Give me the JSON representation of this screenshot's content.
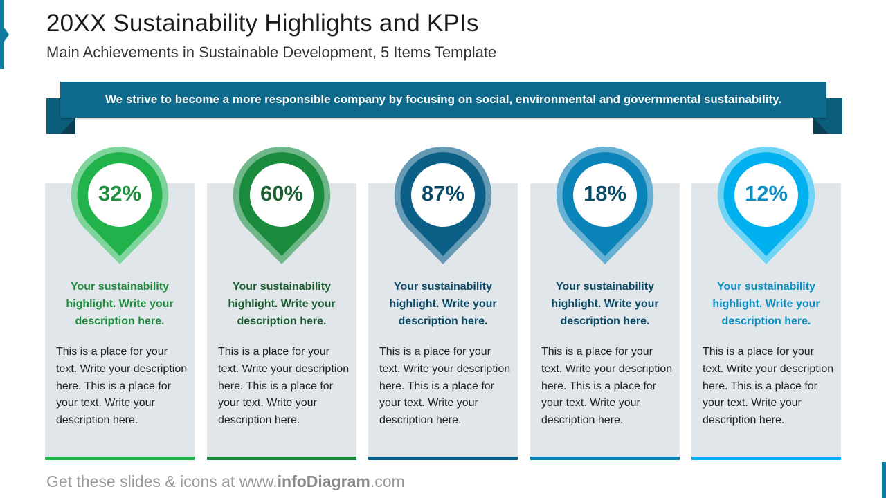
{
  "header": {
    "title": "20XX Sustainability Highlights and KPIs",
    "subtitle": "Main Achievements in Sustainable Development, 5 Items Template"
  },
  "banner": {
    "text": "We strive to become a more responsible company by focusing on social, environmental and governmental sustainability."
  },
  "kpis": [
    {
      "value": "32%",
      "highlight": "Your sustainability highlight. Write your description here.",
      "description": "This is a place for your text. Write your description here. This is a place for your text. Write your description here.",
      "color": "#21b24b",
      "ring_color": "#7fd49b",
      "highlight_color": "#1e8c3c"
    },
    {
      "value": "60%",
      "highlight": "Your sustainability highlight. Write your description here.",
      "description": "This is a place for your text. Write your description here. This is a place for your text. Write your description here.",
      "color": "#1a8a3c",
      "ring_color": "#6fb788",
      "highlight_color": "#1b5e30"
    },
    {
      "value": "87%",
      "highlight": "Your sustainability highlight. Write your description here.",
      "description": "This is a place for your text. Write your description here. This is a place for your text. Write your description here.",
      "color": "#0b5f86",
      "ring_color": "#6699b4",
      "highlight_color": "#0b4a66"
    },
    {
      "value": "18%",
      "highlight": "Your sustainability highlight. Write your description here.",
      "description": "This is a place for your text. Write your description here. This is a place for your text. Write your description here.",
      "color": "#0a84b8",
      "ring_color": "#66b1d3",
      "highlight_color": "#0b4a66"
    },
    {
      "value": "12%",
      "highlight": "Your sustainability highlight. Write your description here.",
      "description": "This is a place for your text. Write your description here. This is a place for your text. Write your description here.",
      "color": "#00b0ef",
      "ring_color": "#70d4f7",
      "highlight_color": "#0d8ec2"
    }
  ],
  "footer": {
    "prefix": "Get these slides & icons at www.",
    "brand": "infoDiagram",
    "suffix": ".com"
  }
}
